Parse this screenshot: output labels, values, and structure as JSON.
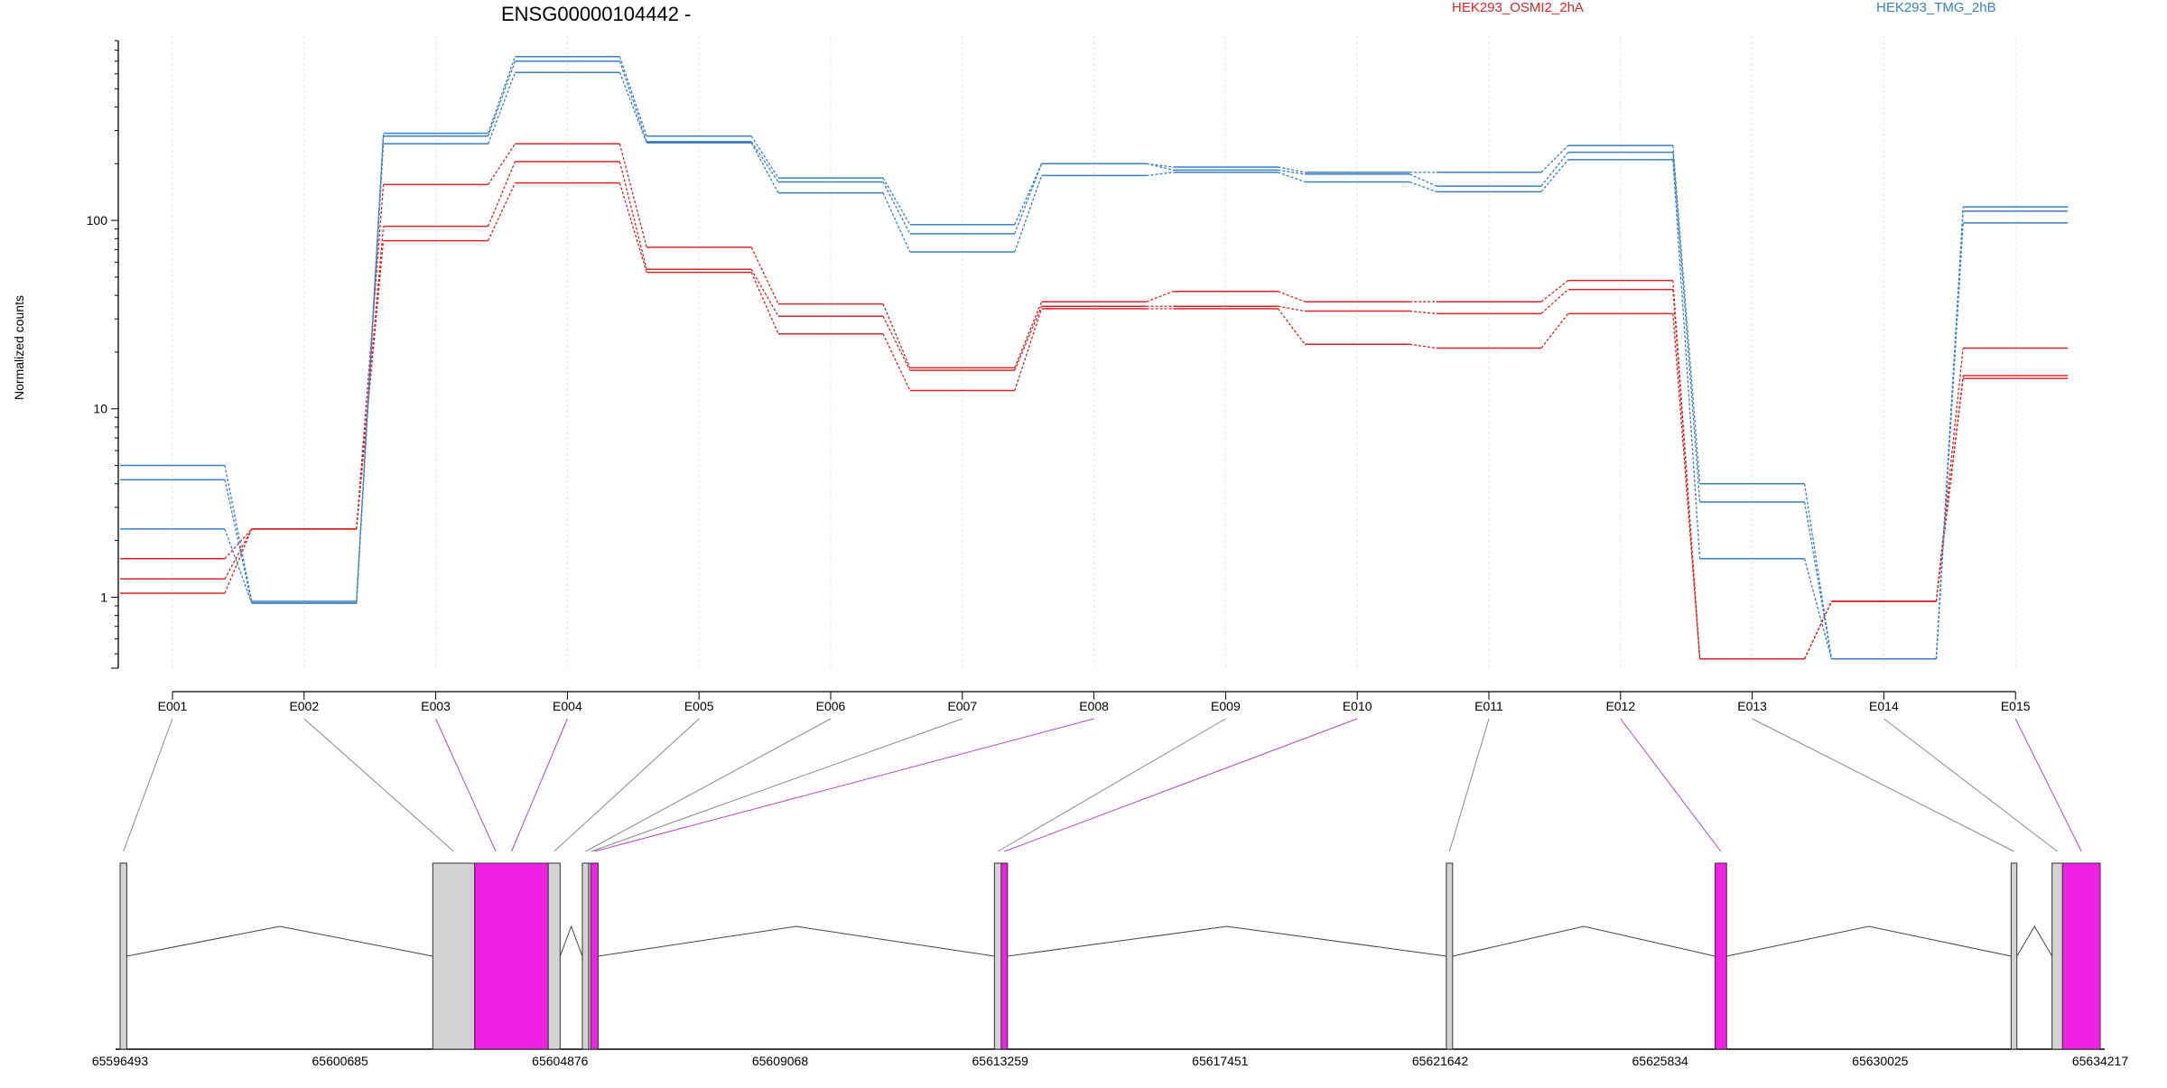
{
  "chart_data": {
    "type": "line",
    "title": "ENSG00000104442 -",
    "ylabel": "Normalized counts",
    "yscale": "log",
    "ylim": [
      0.42,
      900
    ],
    "y_ticks": [
      1,
      10,
      100
    ],
    "y_tick_labels": [
      "1",
      "10",
      "100"
    ],
    "categories": [
      "E001",
      "E002",
      "E003",
      "E004",
      "E005",
      "E006",
      "E007",
      "E008",
      "E009",
      "E010",
      "E011",
      "E012",
      "E013",
      "E014",
      "E015"
    ],
    "legend": [
      {
        "name": "HEK293_OSMI2_2hA",
        "color": "#d62728"
      },
      {
        "name": "HEK293_TMG_2hB",
        "color": "#3a7fc1"
      }
    ],
    "series": [
      {
        "group": "HEK293_OSMI2_2hA",
        "color": "#d62728",
        "values": [
          1.6,
          2.3,
          155,
          255,
          72,
          36,
          16.5,
          37,
          42,
          37,
          37,
          48,
          0.47,
          0.95,
          21
        ]
      },
      {
        "group": "HEK293_OSMI2_2hA",
        "color": "#d62728",
        "values": [
          1.25,
          2.3,
          93,
          205,
          55,
          31,
          16.0,
          35,
          35,
          33,
          32,
          43,
          0.47,
          0.95,
          15
        ]
      },
      {
        "group": "HEK293_OSMI2_2hA",
        "color": "#d62728",
        "values": [
          1.05,
          2.3,
          78,
          158,
          53,
          25,
          12.5,
          34,
          34,
          22,
          21,
          32,
          0.47,
          0.95,
          14.5
        ]
      },
      {
        "group": "HEK293_TMG_2hB",
        "color": "#3a7fc1",
        "values": [
          5.0,
          0.95,
          290,
          740,
          280,
          168,
          95,
          200,
          192,
          180,
          180,
          250,
          4.0,
          0.47,
          118
        ]
      },
      {
        "group": "HEK293_TMG_2hB",
        "color": "#3a7fc1",
        "values": [
          4.2,
          0.93,
          280,
          700,
          262,
          160,
          85,
          200,
          185,
          176,
          152,
          230,
          3.2,
          0.47,
          112
        ]
      },
      {
        "group": "HEK293_TMG_2hB",
        "color": "#3a7fc1",
        "values": [
          2.3,
          0.93,
          255,
          610,
          258,
          140,
          68,
          173,
          180,
          160,
          142,
          210,
          1.6,
          0.47,
          97
        ]
      }
    ],
    "exon_highlight": [
      "E003",
      "E004",
      "E008",
      "E010",
      "E012",
      "E015"
    ],
    "gene_model": {
      "coord_labels": [
        "65596493",
        "65600685",
        "65604876",
        "65609068",
        "65613259",
        "65617451",
        "65621642",
        "65625834",
        "65630025",
        "65634217"
      ],
      "coord_min": 65596493,
      "coord_max": 65634217,
      "exons": [
        {
          "id": "E001",
          "start": 65596493,
          "end": 65596620,
          "highlight": false
        },
        {
          "id": "E002",
          "start": 65602450,
          "end": 65603250,
          "highlight": false
        },
        {
          "id": "E003",
          "start": 65603250,
          "end": 65604050,
          "highlight": true
        },
        {
          "id": "E004",
          "start": 65603250,
          "end": 65604650,
          "highlight": true
        },
        {
          "id": "E005",
          "start": 65604650,
          "end": 65604876,
          "highlight": false
        },
        {
          "id": "E006",
          "start": 65605300,
          "end": 65605420,
          "highlight": false
        },
        {
          "id": "E007",
          "start": 65605420,
          "end": 65605460,
          "highlight": false
        },
        {
          "id": "E008",
          "start": 65605460,
          "end": 65605600,
          "highlight": true
        },
        {
          "id": "E009",
          "start": 65613150,
          "end": 65613280,
          "highlight": false
        },
        {
          "id": "E010",
          "start": 65613280,
          "end": 65613400,
          "highlight": true
        },
        {
          "id": "E011",
          "start": 65621760,
          "end": 65621880,
          "highlight": false
        },
        {
          "id": "E012",
          "start": 65626880,
          "end": 65627100,
          "highlight": true
        },
        {
          "id": "E013",
          "start": 65632520,
          "end": 65632630,
          "highlight": false
        },
        {
          "id": "E014",
          "start": 65633300,
          "end": 65633500,
          "highlight": false
        },
        {
          "id": "E015",
          "start": 65633500,
          "end": 65634217,
          "highlight": true
        }
      ],
      "introns": [
        [
          65596620,
          65602450
        ],
        [
          65604876,
          65605300
        ],
        [
          65605600,
          65613150
        ],
        [
          65613400,
          65621760
        ],
        [
          65621880,
          65626880
        ],
        [
          65627100,
          65632520
        ],
        [
          65632630,
          65633300
        ]
      ],
      "highlight_color": "#ee22e2"
    }
  }
}
